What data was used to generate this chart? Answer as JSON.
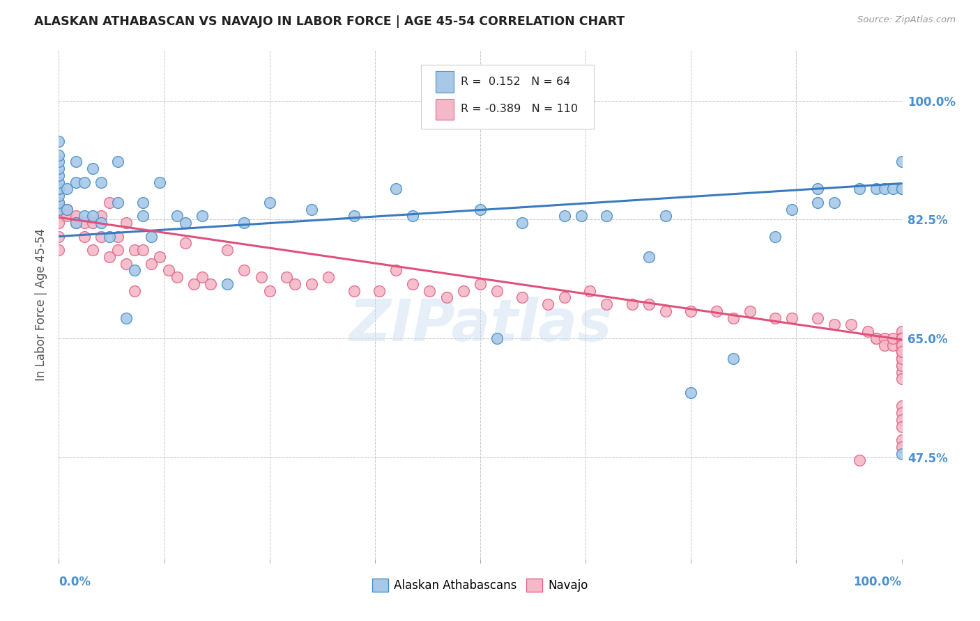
{
  "title": "ALASKAN ATHABASCAN VS NAVAJO IN LABOR FORCE | AGE 45-54 CORRELATION CHART",
  "source": "Source: ZipAtlas.com",
  "ylabel": "In Labor Force | Age 45-54",
  "xlim": [
    0.0,
    1.0
  ],
  "ylim": [
    0.325,
    1.075
  ],
  "yticks": [
    0.475,
    0.65,
    0.825,
    1.0
  ],
  "ytick_labels": [
    "47.5%",
    "65.0%",
    "82.5%",
    "100.0%"
  ],
  "blue_color": "#a8c8e8",
  "pink_color": "#f4b8c8",
  "blue_edge_color": "#4a90c8",
  "pink_edge_color": "#e06888",
  "blue_line_color": "#3a7abf",
  "pink_line_color": "#e0507a",
  "legend_blue_label": "Alaskan Athabascans",
  "legend_pink_label": "Navajo",
  "blue_R": 0.152,
  "blue_N": 64,
  "pink_R": -0.389,
  "pink_N": 110,
  "blue_line_x": [
    0.0,
    1.0
  ],
  "blue_line_y": [
    0.8,
    0.878
  ],
  "pink_line_x": [
    0.0,
    1.0
  ],
  "pink_line_y": [
    0.828,
    0.648
  ],
  "watermark": "ZIPatlas",
  "background_color": "#ffffff",
  "grid_color": "#bbbbbb",
  "title_color": "#222222",
  "axis_label_color": "#555555",
  "tick_label_color": "#4a90d0",
  "blue_x": [
    0.0,
    0.0,
    0.0,
    0.0,
    0.0,
    0.0,
    0.0,
    0.0,
    0.0,
    0.0,
    0.0,
    0.01,
    0.01,
    0.02,
    0.02,
    0.02,
    0.03,
    0.03,
    0.04,
    0.04,
    0.05,
    0.05,
    0.06,
    0.07,
    0.07,
    0.08,
    0.09,
    0.1,
    0.1,
    0.11,
    0.12,
    0.14,
    0.15,
    0.17,
    0.2,
    0.22,
    0.25,
    0.3,
    0.35,
    0.4,
    0.42,
    0.5,
    0.52,
    0.55,
    0.6,
    0.62,
    0.65,
    0.7,
    0.72,
    0.75,
    0.8,
    0.85,
    0.87,
    0.9,
    0.9,
    0.92,
    0.95,
    0.97,
    0.98,
    0.99,
    1.0,
    1.0,
    1.0,
    1.0
  ],
  "blue_y": [
    0.84,
    0.85,
    0.86,
    0.87,
    0.87,
    0.88,
    0.89,
    0.9,
    0.91,
    0.92,
    0.94,
    0.84,
    0.87,
    0.82,
    0.88,
    0.91,
    0.83,
    0.88,
    0.83,
    0.9,
    0.82,
    0.88,
    0.8,
    0.85,
    0.91,
    0.68,
    0.75,
    0.85,
    0.83,
    0.8,
    0.88,
    0.83,
    0.82,
    0.83,
    0.73,
    0.82,
    0.85,
    0.84,
    0.83,
    0.87,
    0.83,
    0.84,
    0.65,
    0.82,
    0.83,
    0.83,
    0.83,
    0.77,
    0.83,
    0.57,
    0.62,
    0.8,
    0.84,
    0.87,
    0.85,
    0.85,
    0.87,
    0.87,
    0.87,
    0.87,
    0.87,
    0.87,
    0.91,
    0.48
  ],
  "pink_x": [
    0.0,
    0.0,
    0.0,
    0.0,
    0.0,
    0.0,
    0.0,
    0.01,
    0.01,
    0.02,
    0.02,
    0.03,
    0.03,
    0.04,
    0.04,
    0.05,
    0.05,
    0.06,
    0.06,
    0.07,
    0.07,
    0.08,
    0.08,
    0.09,
    0.09,
    0.1,
    0.11,
    0.12,
    0.13,
    0.14,
    0.15,
    0.16,
    0.17,
    0.18,
    0.2,
    0.22,
    0.24,
    0.25,
    0.27,
    0.28,
    0.3,
    0.32,
    0.35,
    0.38,
    0.4,
    0.42,
    0.44,
    0.46,
    0.48,
    0.5,
    0.52,
    0.55,
    0.58,
    0.6,
    0.63,
    0.65,
    0.68,
    0.7,
    0.72,
    0.75,
    0.78,
    0.8,
    0.82,
    0.85,
    0.87,
    0.9,
    0.92,
    0.94,
    0.95,
    0.96,
    0.97,
    0.97,
    0.98,
    0.98,
    0.99,
    0.99,
    1.0,
    1.0,
    1.0,
    1.0,
    1.0,
    1.0,
    1.0,
    1.0,
    1.0,
    1.0,
    1.0,
    1.0,
    1.0,
    1.0,
    1.0,
    1.0,
    1.0,
    1.0,
    1.0,
    1.0,
    1.0,
    1.0,
    1.0,
    1.0,
    1.0,
    1.0,
    1.0,
    1.0,
    1.0,
    1.0,
    1.0,
    1.0,
    1.0,
    1.0
  ],
  "pink_y": [
    0.87,
    0.85,
    0.84,
    0.83,
    0.82,
    0.8,
    0.78,
    0.84,
    0.83,
    0.83,
    0.82,
    0.82,
    0.8,
    0.82,
    0.78,
    0.83,
    0.8,
    0.85,
    0.77,
    0.8,
    0.78,
    0.82,
    0.76,
    0.78,
    0.72,
    0.78,
    0.76,
    0.77,
    0.75,
    0.74,
    0.79,
    0.73,
    0.74,
    0.73,
    0.78,
    0.75,
    0.74,
    0.72,
    0.74,
    0.73,
    0.73,
    0.74,
    0.72,
    0.72,
    0.75,
    0.73,
    0.72,
    0.71,
    0.72,
    0.73,
    0.72,
    0.71,
    0.7,
    0.71,
    0.72,
    0.7,
    0.7,
    0.7,
    0.69,
    0.69,
    0.69,
    0.68,
    0.69,
    0.68,
    0.68,
    0.68,
    0.67,
    0.67,
    0.47,
    0.66,
    0.65,
    0.65,
    0.65,
    0.64,
    0.64,
    0.65,
    0.66,
    0.65,
    0.65,
    0.64,
    0.64,
    0.65,
    0.64,
    0.63,
    0.65,
    0.64,
    0.63,
    0.64,
    0.63,
    0.62,
    0.64,
    0.62,
    0.62,
    0.61,
    0.6,
    0.59,
    0.61,
    0.65,
    0.55,
    0.54,
    0.53,
    0.52,
    0.5,
    0.49,
    0.65,
    0.64,
    0.63,
    0.62,
    0.64,
    0.63
  ]
}
